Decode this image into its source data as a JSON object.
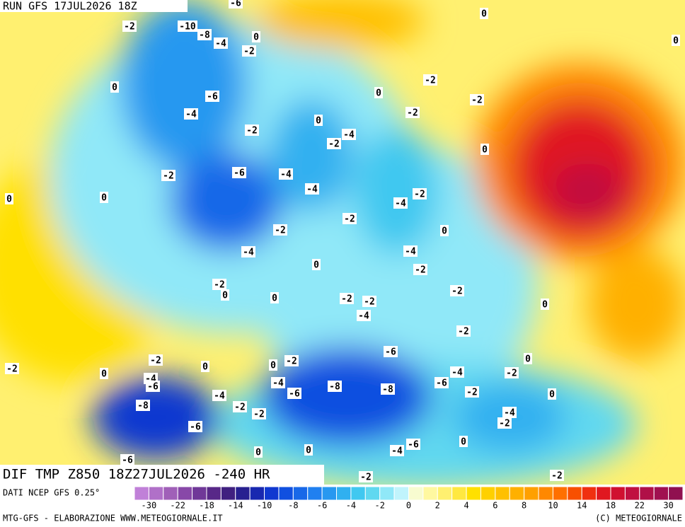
{
  "header": {
    "run": "RUN GFS 17JUL2026 18Z"
  },
  "map_title": "DIF TMP Z850 18Z27JUL2026 -240 HR",
  "source": "DATI NCEP GFS 0.25°",
  "footer_left": "MTG-GFS - ELABORAZIONE WWW.METEOGIORNALE.IT",
  "footer_right": "(C) METEOGIORNALE",
  "colorbar": {
    "colors": [
      "#c080d8",
      "#b070c8",
      "#a060b8",
      "#8848a8",
      "#703898",
      "#582888",
      "#402080",
      "#282090",
      "#1828b0",
      "#1038d0",
      "#1050e0",
      "#1868e8",
      "#2080f0",
      "#2898f0",
      "#30b0f0",
      "#40c8f0",
      "#60d8f0",
      "#90e8f8",
      "#c0f4fc",
      "#f8fcd0",
      "#fff8a0",
      "#fff070",
      "#ffe840",
      "#ffe000",
      "#ffd000",
      "#ffc000",
      "#ffb000",
      "#ffa000",
      "#ff8800",
      "#ff7000",
      "#f85000",
      "#f03010",
      "#e01820",
      "#d01030",
      "#c01040",
      "#b01048",
      "#a01050",
      "#901050"
    ],
    "ticks": [
      -30,
      -22,
      -18,
      -14,
      -10,
      -8,
      -6,
      -4,
      -2,
      0,
      2,
      4,
      6,
      8,
      10,
      14,
      18,
      22,
      30
    ]
  },
  "contour_labels": [
    -2,
    -10,
    -8,
    -4,
    0,
    -2,
    0,
    -6,
    -4,
    -2,
    0,
    -4,
    -2,
    0,
    -2,
    -2,
    -2,
    0,
    -2,
    -6,
    -4,
    -4,
    -4,
    -2,
    0,
    0,
    -2,
    -2,
    0,
    -4,
    -4,
    0,
    -2,
    -2,
    0,
    0,
    -2,
    -2,
    -4,
    -2,
    0,
    -2,
    -6,
    0,
    -2,
    -2,
    0,
    0,
    0,
    -2,
    -4,
    -6,
    -4,
    -2,
    -4,
    -6,
    -8,
    -8,
    -6,
    -2,
    0,
    -4,
    -8,
    -2,
    -2,
    -4,
    -2,
    -6,
    -6,
    -4,
    0,
    0,
    0,
    -6,
    -2,
    -2,
    0,
    0,
    -6
  ]
}
